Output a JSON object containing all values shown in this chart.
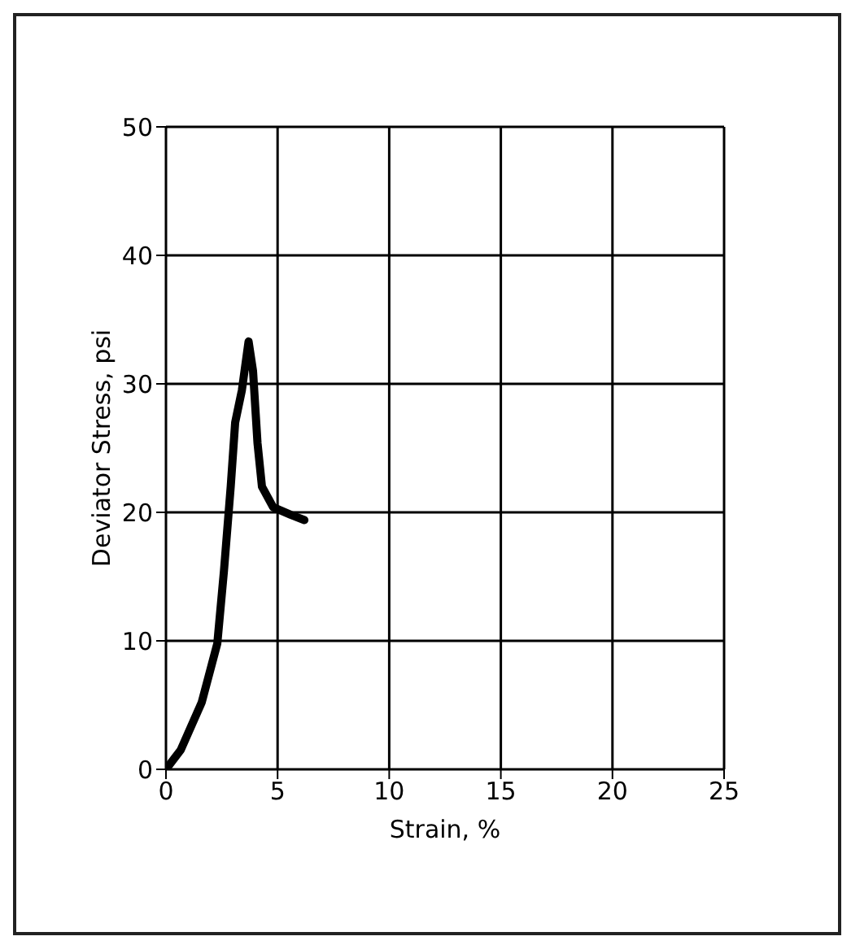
{
  "chart_data": {
    "type": "line",
    "xlabel": "Strain, %",
    "ylabel": "Deviator Stress, psi",
    "x": [
      0,
      0.66,
      1.6,
      2.3,
      2.6,
      2.9,
      3.1,
      3.4,
      3.7,
      3.9,
      4.1,
      4.3,
      4.8,
      5.6,
      6.2
    ],
    "series": [
      {
        "color": "#000000",
        "values": [
          0,
          1.5,
          5.2,
          9.8,
          15.5,
          22,
          27,
          29.5,
          33.3,
          31,
          25.4,
          22,
          20.4,
          19.8,
          19.4
        ]
      }
    ],
    "xlim": [
      0,
      25
    ],
    "xticks": [
      0,
      5,
      10,
      15,
      20,
      25
    ],
    "ylim": [
      0,
      50
    ],
    "yticks": [
      0,
      10,
      20,
      30,
      40,
      50
    ],
    "grid": true,
    "marker": "none",
    "line_style": "solid",
    "legend": false
  }
}
